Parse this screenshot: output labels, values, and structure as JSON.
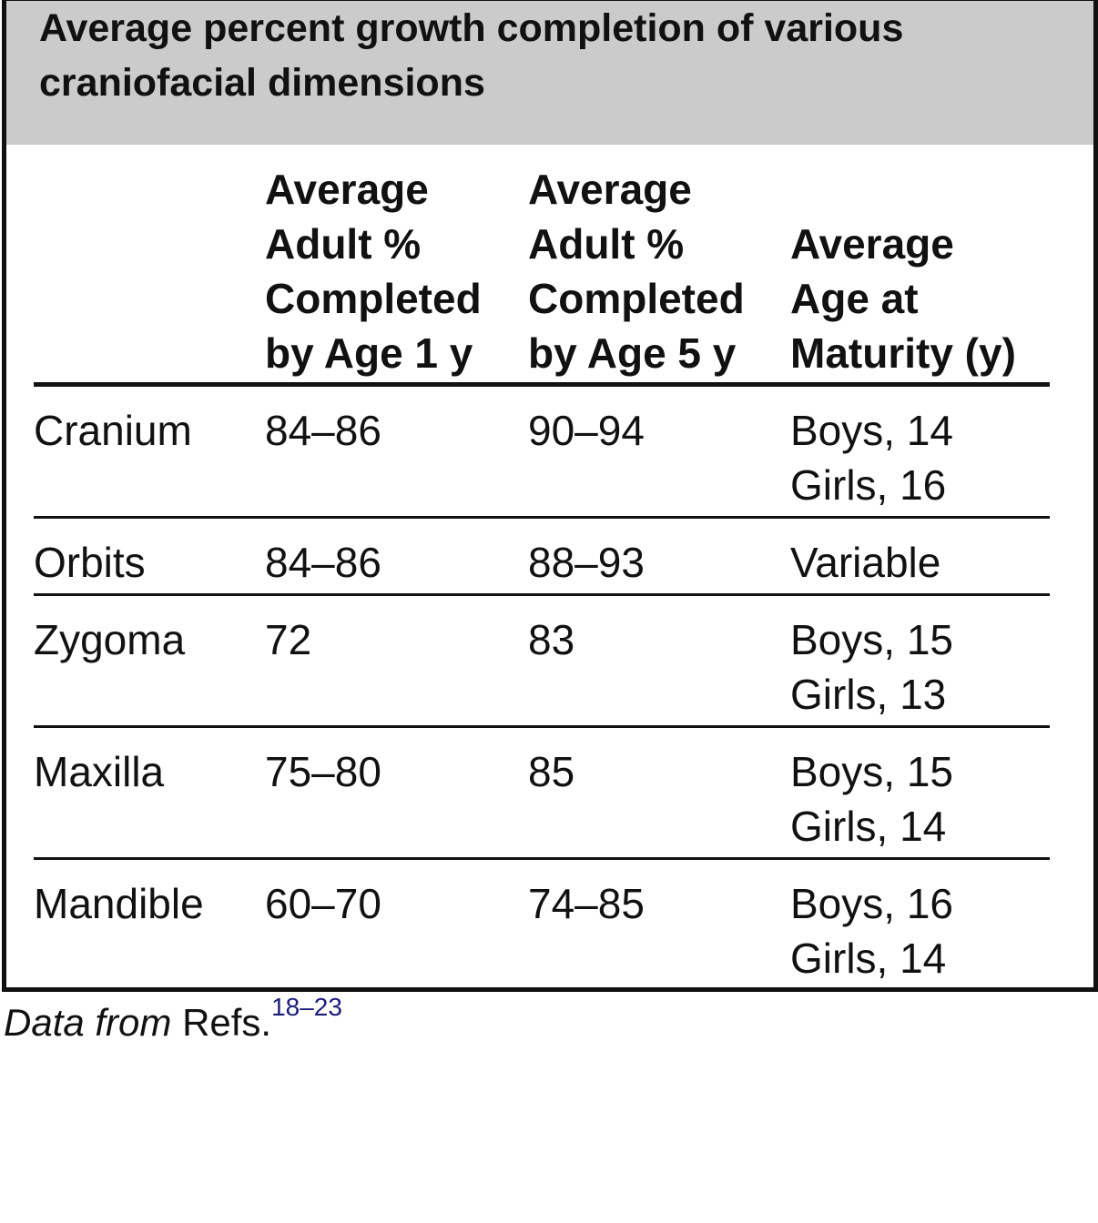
{
  "title": [
    "Average percent growth completion of various",
    "craniofacial dimensions"
  ],
  "table": {
    "header": [
      [],
      [
        "Average",
        "Adult %",
        "Completed",
        "by Age 1 y"
      ],
      [
        "Average",
        "Adult %",
        "Completed",
        "by Age 5 y"
      ],
      [
        "Average",
        "Age at",
        "Maturity (y)"
      ]
    ],
    "rows": [
      [
        [
          "Cranium"
        ],
        [
          "84–86"
        ],
        [
          "90–94"
        ],
        [
          "Boys, 14",
          "Girls, 16"
        ]
      ],
      [
        [
          "Orbits"
        ],
        [
          "84–86"
        ],
        [
          "88–93"
        ],
        [
          "Variable"
        ]
      ],
      [
        [
          "Zygoma"
        ],
        [
          "72"
        ],
        [
          "83"
        ],
        [
          "Boys, 15",
          "Girls, 13"
        ]
      ],
      [
        [
          "Maxilla"
        ],
        [
          "75–80"
        ],
        [
          "85"
        ],
        [
          "Boys, 15",
          "Girls, 14"
        ]
      ],
      [
        [
          "Mandible"
        ],
        [
          "60–70"
        ],
        [
          "74–85"
        ],
        [
          "Boys, 16",
          "Girls, 14"
        ]
      ]
    ]
  },
  "footnote": {
    "prefix": "Data from",
    "text": "Refs.",
    "refs": "18–23"
  }
}
